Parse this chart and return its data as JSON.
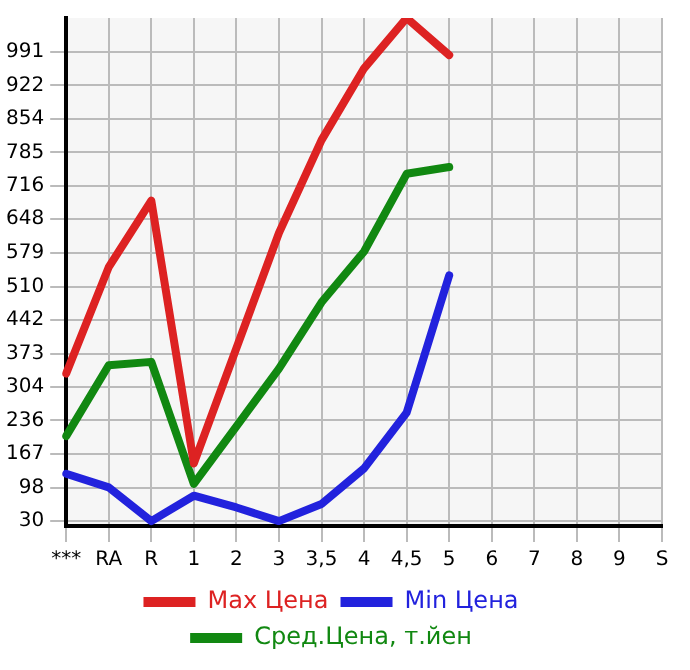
{
  "chart_data": {
    "type": "line",
    "categories": [
      "***",
      "RA",
      "R",
      "1",
      "2",
      "3",
      "3,5",
      "4",
      "4,5",
      "5",
      "6",
      "7",
      "8",
      "9",
      "S"
    ],
    "series": [
      {
        "name": "Max Цена",
        "color": "#dd2222",
        "values": [
          332,
          550,
          686,
          148,
          384,
          620,
          810,
          957,
          1060,
          984,
          null,
          null,
          null,
          null,
          null
        ]
      },
      {
        "name": "Min Цена",
        "color": "#2222dd",
        "values": [
          127,
          99,
          30,
          82,
          58,
          30,
          65,
          138,
          252,
          533,
          null,
          null,
          null,
          null,
          null
        ]
      },
      {
        "name": "Сред.Цена, т.йен",
        "color": "#118811",
        "values": [
          204,
          349,
          356,
          106,
          224,
          342,
          478,
          582,
          741,
          755,
          null,
          null,
          null,
          null,
          null
        ]
      }
    ],
    "ylim": [
      20,
      1060
    ],
    "yticks": [
      30,
      98,
      167,
      236,
      304,
      373,
      442,
      510,
      579,
      648,
      716,
      785,
      854,
      922,
      991
    ],
    "grid": true,
    "legend": "bottom",
    "marker": "none",
    "line_style": "solid"
  }
}
